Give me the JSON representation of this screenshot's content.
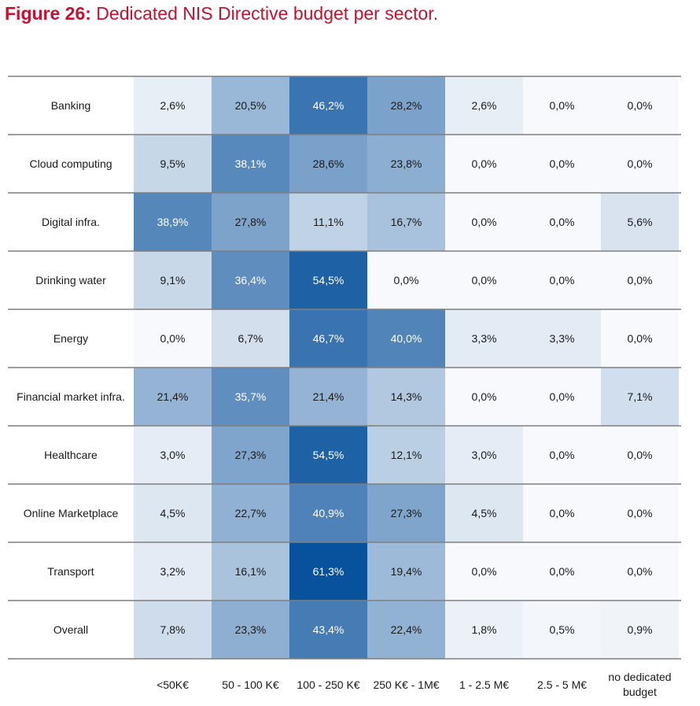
{
  "figure": {
    "number": "Figure 26:",
    "caption": " Dedicated NIS Directive budget per sector."
  },
  "colors": {
    "title": "#c8102e",
    "scale_low": "#f7f9fc",
    "scale_high": "#08519c",
    "row_line": "#7f7f7f"
  },
  "chart_data": {
    "type": "heatmap",
    "title": "Dedicated NIS Directive budget per sector.",
    "rows": [
      "Banking",
      "Cloud computing",
      "Digital infra.",
      "Drinking water",
      "Energy",
      "Financial market infra.",
      "Healthcare",
      "Online Marketplace",
      "Transport",
      "Overall"
    ],
    "columns": [
      "<50K€",
      "50 - 100 K€",
      "100 - 250 K€",
      "250 K€ - 1M€",
      "1 - 2.5 M€",
      "2.5 - 5 M€",
      "no dedicated budget"
    ],
    "values": [
      [
        2.6,
        20.5,
        46.2,
        28.2,
        2.6,
        0.0,
        0.0
      ],
      [
        9.5,
        38.1,
        28.6,
        23.8,
        0.0,
        0.0,
        0.0
      ],
      [
        38.9,
        27.8,
        11.1,
        16.7,
        0.0,
        0.0,
        5.6
      ],
      [
        9.1,
        36.4,
        54.5,
        0.0,
        0.0,
        0.0,
        0.0
      ],
      [
        0.0,
        6.7,
        46.7,
        40.0,
        3.3,
        3.3,
        0.0
      ],
      [
        21.4,
        35.7,
        21.4,
        14.3,
        0.0,
        0.0,
        7.1
      ],
      [
        3.0,
        27.3,
        54.5,
        12.1,
        3.0,
        0.0,
        0.0
      ],
      [
        4.5,
        22.7,
        40.9,
        27.3,
        4.5,
        0.0,
        0.0
      ],
      [
        3.2,
        16.1,
        61.3,
        19.4,
        0.0,
        0.0,
        0.0
      ],
      [
        7.8,
        23.3,
        43.4,
        22.4,
        1.8,
        0.5,
        0.9
      ]
    ],
    "value_format": "percent, one decimal, comma as decimal separator",
    "legend": "none",
    "grid": false
  }
}
